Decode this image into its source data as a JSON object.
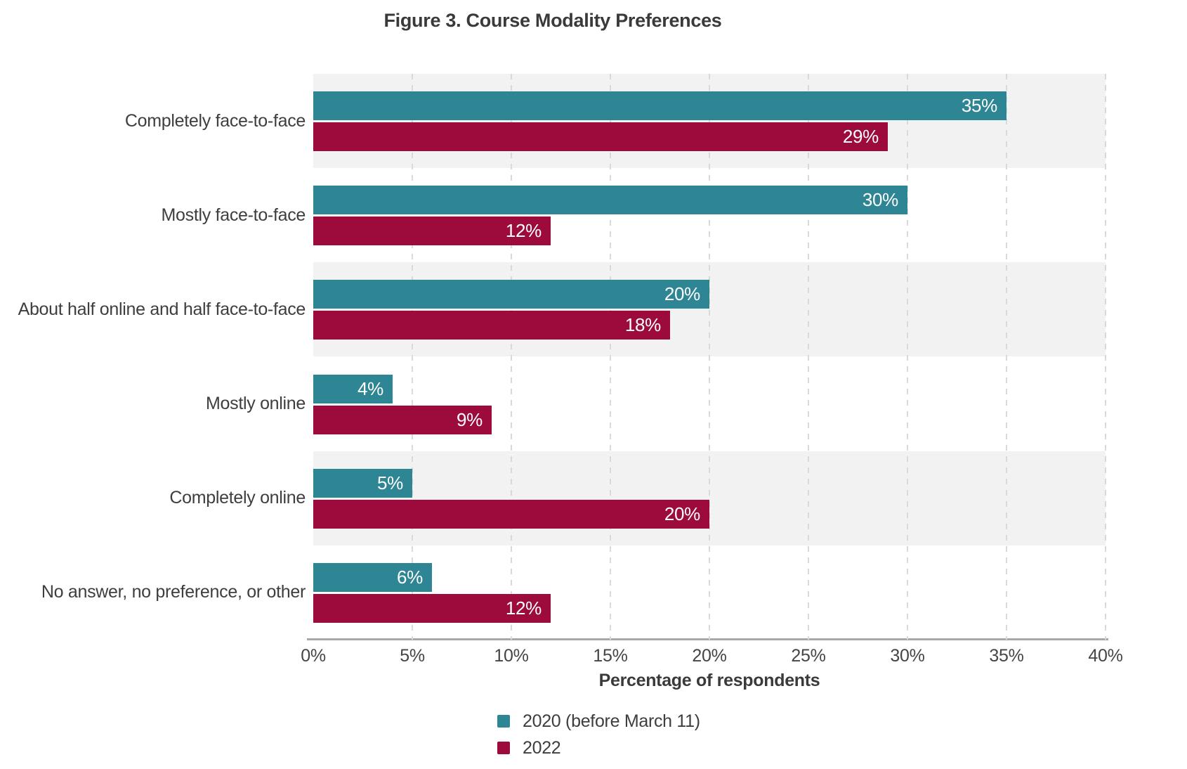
{
  "chart_data": {
    "type": "bar",
    "orientation": "horizontal",
    "title": "Figure 3. Course Modality Preferences",
    "xlabel": "Percentage of respondents",
    "categories": [
      "Completely face-to-face",
      "Mostly face-to-face",
      "About half online and half face-to-face",
      "Mostly online",
      "Completely online",
      "No answer, no preference, or other"
    ],
    "series": [
      {
        "name": "2020 (before March 11)",
        "color": "#2E8593",
        "values": [
          35,
          30,
          20,
          4,
          5,
          6
        ]
      },
      {
        "name": "2022",
        "color": "#9D0B3D",
        "values": [
          29,
          12,
          18,
          9,
          20,
          12
        ]
      }
    ],
    "value_suffix": "%",
    "xlim": [
      0,
      40
    ],
    "x_ticks": [
      "0%",
      "5%",
      "10%",
      "15%",
      "20%",
      "25%",
      "30%",
      "35%",
      "40%"
    ],
    "grid": "vertical-dashed",
    "legend_position": "bottom-center",
    "band_color": "#F2F2F2",
    "value_label_color": "#FFFFFF"
  }
}
